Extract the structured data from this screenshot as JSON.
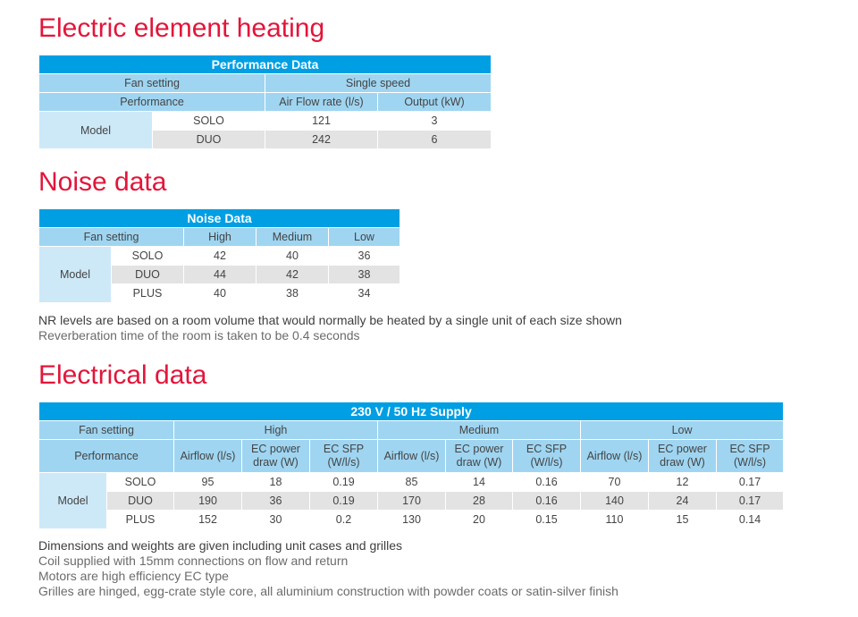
{
  "sections": {
    "electric": {
      "heading": "Electric element heating",
      "table_title": "Performance Data",
      "fan_setting": "Fan setting",
      "single_speed": "Single speed",
      "performance": "Performance",
      "airflow": "Air Flow rate (l/s)",
      "output": "Output (kW)",
      "model": "Model",
      "rows": [
        {
          "name": "SOLO",
          "airflow": "121",
          "output": "3"
        },
        {
          "name": "DUO",
          "airflow": "242",
          "output": "6"
        }
      ]
    },
    "noise": {
      "heading": "Noise data",
      "table_title": "Noise Data",
      "fan_setting": "Fan setting",
      "high": "High",
      "medium": "Medium",
      "low": "Low",
      "model": "Model",
      "rows": [
        {
          "name": "SOLO",
          "high": "42",
          "medium": "40",
          "low": "36"
        },
        {
          "name": "DUO",
          "high": "44",
          "medium": "42",
          "low": "38"
        },
        {
          "name": "PLUS",
          "high": "40",
          "medium": "38",
          "low": "34"
        }
      ],
      "notes": [
        "NR levels are based on a room volume that would normally be heated by a single unit of each size shown",
        "Reverberation time of the room is taken to be 0.4 seconds"
      ]
    },
    "electrical": {
      "heading": "Electrical data",
      "table_title": "230 V / 50 Hz Supply",
      "fan_setting": "Fan setting",
      "high": "High",
      "medium": "Medium",
      "low": "Low",
      "performance": "Performance",
      "airflow": "Airflow (l/s)",
      "ec_power": "EC power draw (W)",
      "ec_sfp": "EC SFP (W/l/s)",
      "model": "Model",
      "rows": [
        {
          "name": "SOLO",
          "v": [
            "95",
            "18",
            "0.19",
            "85",
            "14",
            "0.16",
            "70",
            "12",
            "0.17"
          ]
        },
        {
          "name": "DUO",
          "v": [
            "190",
            "36",
            "0.19",
            "170",
            "28",
            "0.16",
            "140",
            "24",
            "0.17"
          ]
        },
        {
          "name": "PLUS",
          "v": [
            "152",
            "30",
            "0.2",
            "130",
            "20",
            "0.15",
            "110",
            "15",
            "0.14"
          ]
        }
      ],
      "notes": [
        "Dimensions and weights are given including unit cases and grilles",
        "Coil supplied with 15mm connections on flow and return",
        "Motors are high efficiency EC type",
        "Grilles are hinged, egg-crate style core, all aluminium construction with powder coats or satin-silver finish"
      ]
    }
  }
}
